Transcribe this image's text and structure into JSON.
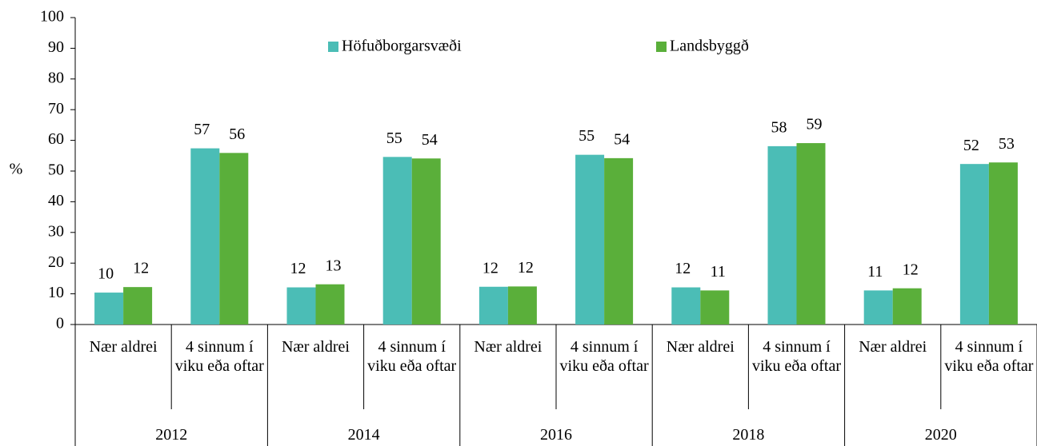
{
  "chart_data": {
    "type": "bar",
    "y_label": "%",
    "categories": [
      "Nær aldrei",
      "4 sinnum í viku eða oftar",
      "Nær aldrei",
      "4 sinnum í viku eða oftar",
      "Nær aldrei",
      "4 sinnum í viku eða oftar",
      "Nær aldrei",
      "4 sinnum í viku eða oftar",
      "Nær aldrei",
      "4 sinnum í viku eða oftar"
    ],
    "groups": [
      "2012",
      "2014",
      "2016",
      "2018",
      "2020"
    ],
    "series": [
      {
        "name": "Höfuðborgarsvæði",
        "color": "#4bbdb6",
        "values": [
          10.4,
          57.4,
          12.1,
          54.6,
          12.3,
          55.3,
          12.1,
          58.1,
          11.1,
          52.3
        ],
        "value_labels": [
          "10",
          "57",
          "12",
          "55",
          "12",
          "55",
          "12",
          "58",
          "11",
          "52"
        ]
      },
      {
        "name": "Landsbyggð",
        "color": "#5aaf3a",
        "values": [
          12.2,
          55.9,
          13.1,
          54.1,
          12.4,
          54.2,
          11.1,
          59.1,
          11.8,
          52.8
        ],
        "value_labels": [
          "12",
          "56",
          "13",
          "54",
          "12",
          "54",
          "11",
          "59",
          "12",
          "53"
        ]
      }
    ],
    "ylim": [
      0,
      100
    ],
    "yticks": [
      0,
      10,
      20,
      30,
      40,
      50,
      60,
      70,
      80,
      90,
      100
    ],
    "grid": false,
    "legend": "top"
  }
}
